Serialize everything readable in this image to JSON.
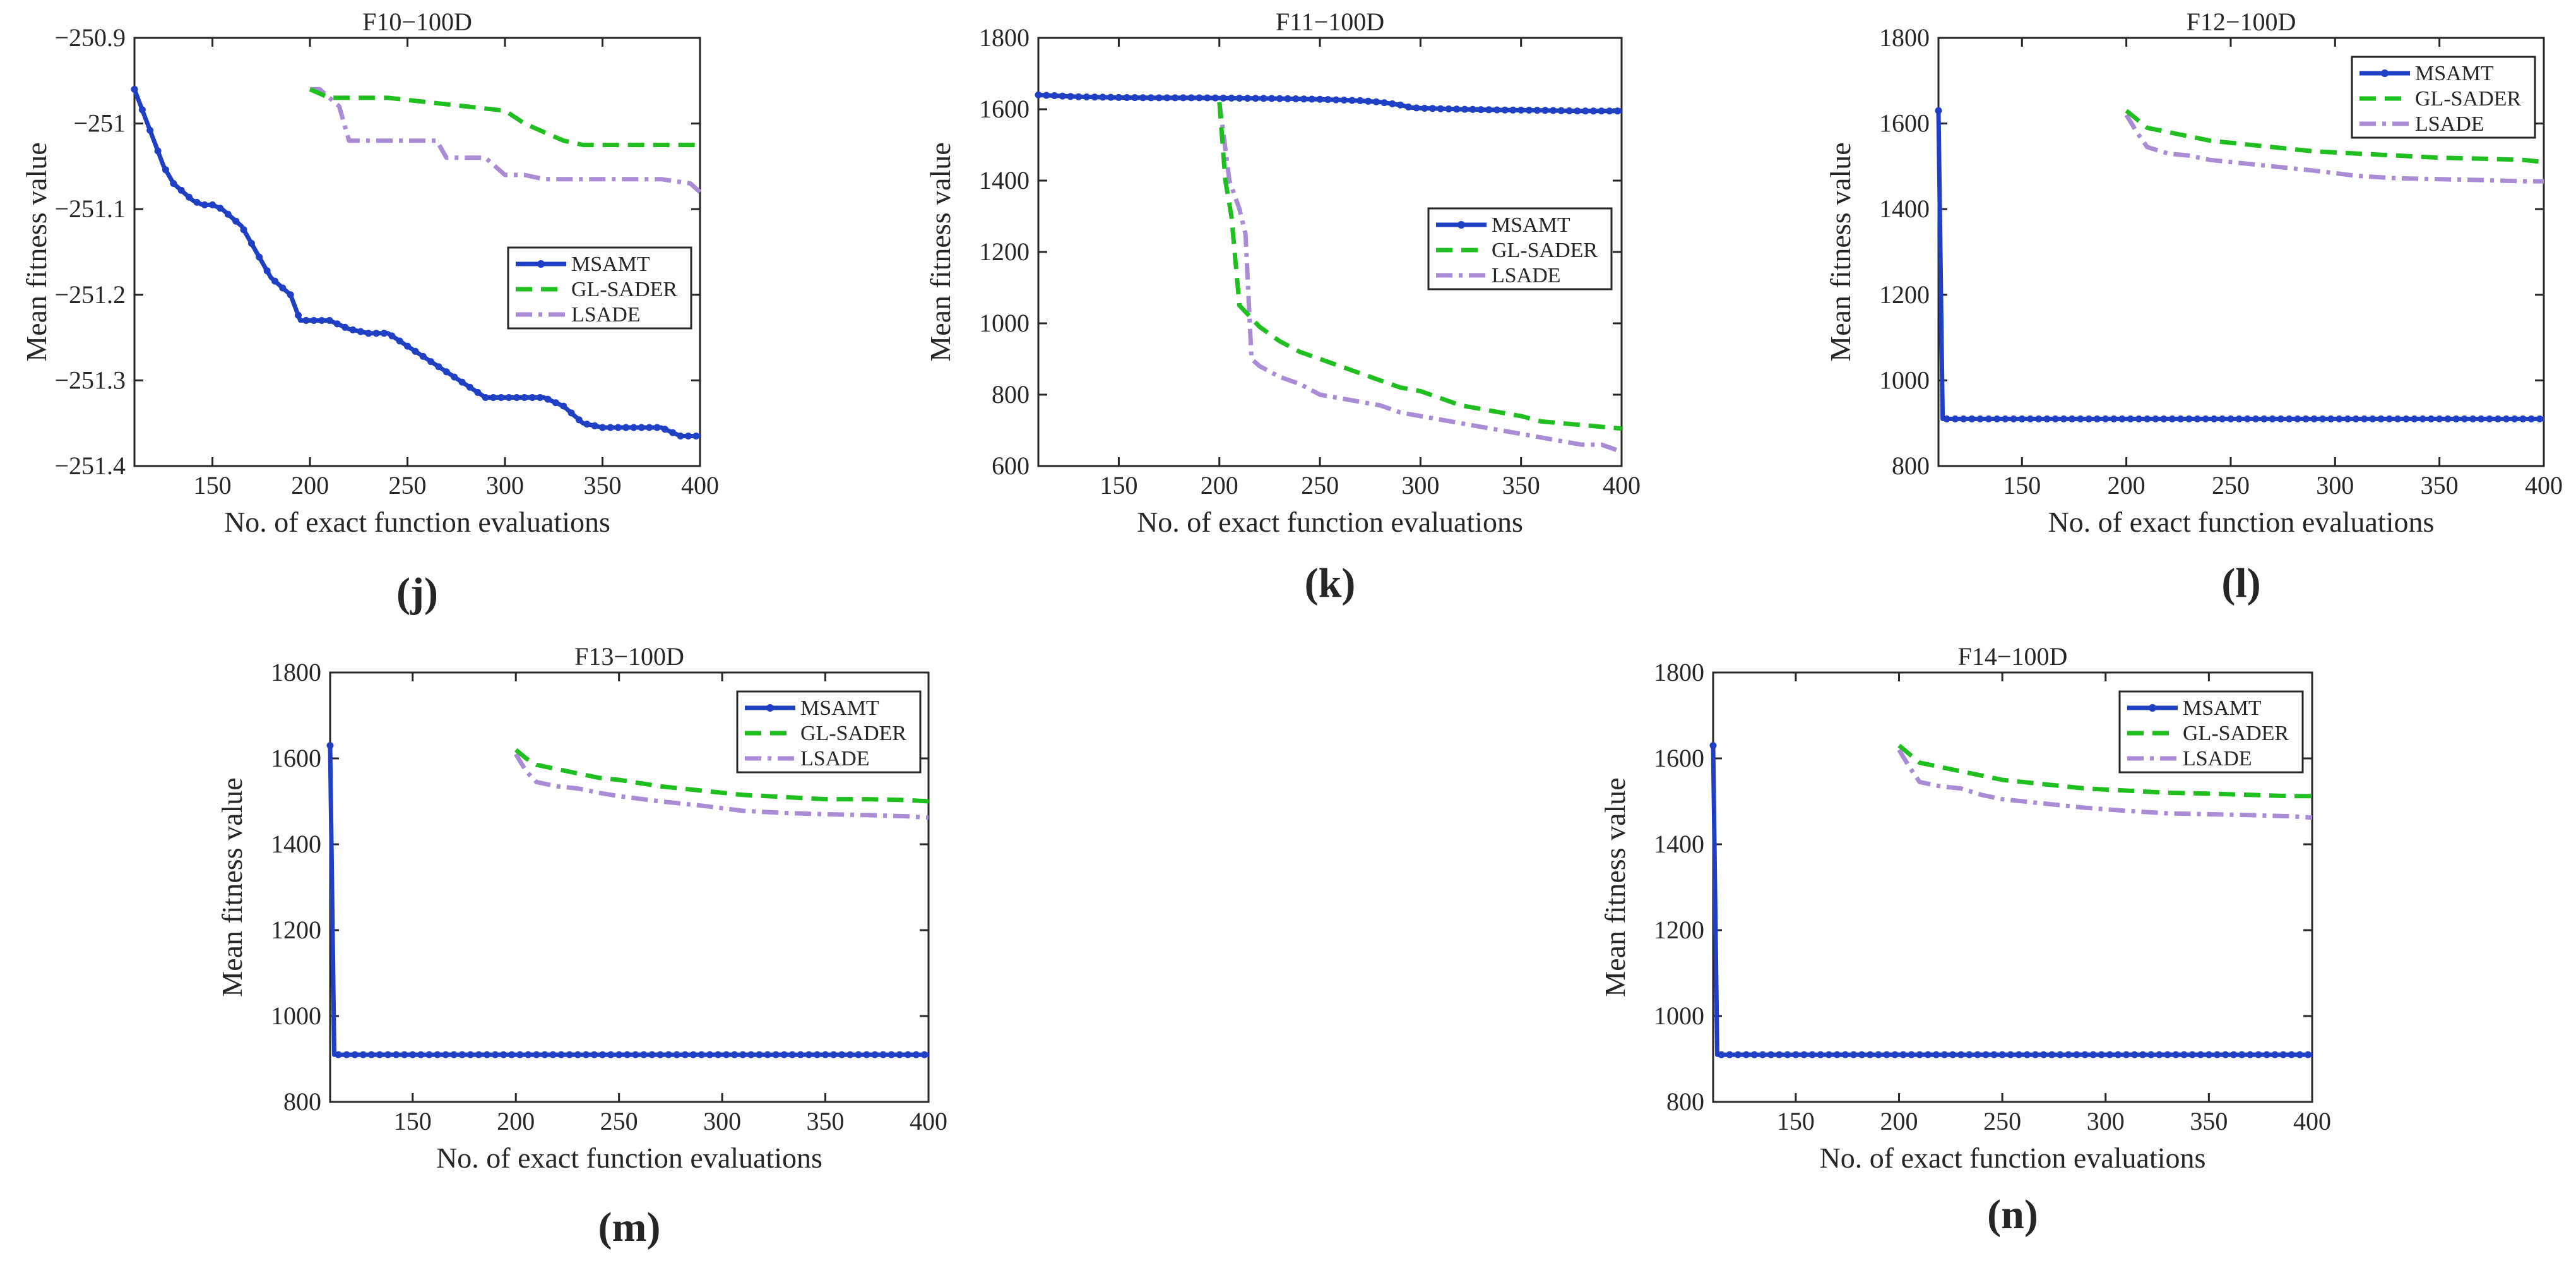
{
  "chart_data": [
    {
      "type": "line",
      "panel": "(j)",
      "title": "F10−100D",
      "xlabel": "No. of exact function evaluations",
      "ylabel": "Mean fitness value",
      "xlim": [
        110,
        400
      ],
      "ylim": [
        -251.4,
        -250.9
      ],
      "xticks": [
        150,
        200,
        250,
        300,
        350,
        400
      ],
      "xtick_labels": [
        "150",
        "200",
        "250",
        "300",
        "350",
        "400"
      ],
      "yticks": [
        -251.4,
        -251.3,
        -251.2,
        -251.1,
        -251.0,
        -250.9
      ],
      "ytick_labels": [
        "−251.4",
        "−251.3",
        "−251.2",
        "−251.1",
        "−251",
        "−250.9"
      ],
      "legend_position": "right",
      "series": [
        {
          "name": "MSAMT",
          "x": [
            110,
            115,
            120,
            125,
            130,
            135,
            140,
            145,
            150,
            155,
            160,
            165,
            170,
            175,
            180,
            185,
            190,
            195,
            200,
            210,
            220,
            230,
            240,
            250,
            260,
            270,
            280,
            290,
            300,
            310,
            320,
            330,
            340,
            350,
            360,
            370,
            380,
            390,
            400
          ],
          "y": [
            -250.96,
            -250.99,
            -251.02,
            -251.05,
            -251.07,
            -251.08,
            -251.09,
            -251.095,
            -251.095,
            -251.1,
            -251.11,
            -251.12,
            -251.14,
            -251.16,
            -251.18,
            -251.19,
            -251.2,
            -251.23,
            -251.23,
            -251.23,
            -251.24,
            -251.245,
            -251.245,
            -251.26,
            -251.275,
            -251.29,
            -251.305,
            -251.32,
            -251.32,
            -251.32,
            -251.32,
            -251.33,
            -251.35,
            -251.355,
            -251.355,
            -251.355,
            -251.355,
            -251.365,
            -251.365
          ]
        },
        {
          "name": "GL-SADER",
          "x": [
            200,
            210,
            220,
            240,
            260,
            280,
            300,
            310,
            320,
            330,
            340,
            360,
            380,
            400
          ],
          "y": [
            -250.96,
            -250.97,
            -250.97,
            -250.97,
            -250.975,
            -250.98,
            -250.985,
            -251.0,
            -251.01,
            -251.02,
            -251.025,
            -251.025,
            -251.025,
            -251.025
          ]
        },
        {
          "name": "LSADE",
          "x": [
            200,
            205,
            210,
            215,
            220,
            230,
            250,
            265,
            270,
            290,
            300,
            310,
            320,
            330,
            340,
            360,
            380,
            395,
            400
          ],
          "y": [
            -250.96,
            -250.96,
            -250.97,
            -250.98,
            -251.02,
            -251.02,
            -251.02,
            -251.02,
            -251.04,
            -251.04,
            -251.06,
            -251.06,
            -251.065,
            -251.065,
            -251.065,
            -251.065,
            -251.065,
            -251.07,
            -251.08
          ]
        }
      ]
    },
    {
      "type": "line",
      "panel": "(k)",
      "title": "F11−100D",
      "xlabel": "No. of exact function evaluations",
      "ylabel": "Mean fitness value",
      "xlim": [
        110,
        400
      ],
      "ylim": [
        600,
        1800
      ],
      "xticks": [
        150,
        200,
        250,
        300,
        350,
        400
      ],
      "xtick_labels": [
        "150",
        "200",
        "250",
        "300",
        "350",
        "400"
      ],
      "yticks": [
        600,
        800,
        1000,
        1200,
        1400,
        1600,
        1800
      ],
      "ytick_labels": [
        "600",
        "800",
        "1000",
        "1200",
        "1400",
        "1600",
        "1800"
      ],
      "legend_position": "right",
      "series": [
        {
          "name": "MSAMT",
          "x": [
            110,
            130,
            150,
            170,
            190,
            210,
            230,
            250,
            260,
            270,
            280,
            290,
            295,
            300,
            320,
            340,
            360,
            380,
            400
          ],
          "y": [
            1640,
            1635,
            1633,
            1632,
            1632,
            1631,
            1630,
            1628,
            1626,
            1624,
            1620,
            1612,
            1605,
            1603,
            1600,
            1598,
            1597,
            1595,
            1595
          ]
        },
        {
          "name": "GL-SADER",
          "x": [
            200,
            203,
            206,
            210,
            215,
            220,
            230,
            240,
            250,
            260,
            270,
            280,
            290,
            300,
            310,
            320,
            330,
            340,
            350,
            360,
            370,
            380,
            390,
            400
          ],
          "y": [
            1620,
            1400,
            1300,
            1050,
            1020,
            990,
            950,
            920,
            900,
            880,
            860,
            840,
            820,
            810,
            790,
            770,
            760,
            750,
            740,
            725,
            720,
            715,
            710,
            705
          ]
        },
        {
          "name": "LSADE",
          "x": [
            200,
            205,
            210,
            213,
            216,
            220,
            230,
            240,
            250,
            260,
            270,
            280,
            290,
            300,
            310,
            320,
            330,
            340,
            350,
            360,
            370,
            380,
            390,
            400
          ],
          "y": [
            1620,
            1400,
            1320,
            1250,
            900,
            880,
            850,
            830,
            800,
            790,
            780,
            770,
            750,
            740,
            730,
            720,
            710,
            700,
            690,
            680,
            670,
            660,
            660,
            640
          ]
        }
      ]
    },
    {
      "type": "line",
      "panel": "(l)",
      "title": "F12−100D",
      "xlabel": "No. of exact function evaluations",
      "ylabel": "Mean fitness value",
      "xlim": [
        110,
        400
      ],
      "ylim": [
        800,
        1800
      ],
      "xticks": [
        150,
        200,
        250,
        300,
        350,
        400
      ],
      "xtick_labels": [
        "150",
        "200",
        "250",
        "300",
        "350",
        "400"
      ],
      "yticks": [
        800,
        1000,
        1200,
        1400,
        1600,
        1800
      ],
      "ytick_labels": [
        "800",
        "1000",
        "1200",
        "1400",
        "1600",
        "1800"
      ],
      "legend_position": "top-right",
      "series": [
        {
          "name": "MSAMT",
          "x": [
            110,
            112,
            150,
            200,
            250,
            300,
            350,
            400
          ],
          "y": [
            1630,
            910,
            910,
            910,
            910,
            910,
            910,
            910
          ]
        },
        {
          "name": "GL-SADER",
          "x": [
            200,
            205,
            210,
            220,
            230,
            240,
            250,
            270,
            290,
            310,
            330,
            350,
            370,
            390,
            400
          ],
          "y": [
            1630,
            1610,
            1590,
            1580,
            1570,
            1560,
            1555,
            1545,
            1535,
            1530,
            1525,
            1520,
            1518,
            1515,
            1510
          ]
        },
        {
          "name": "LSADE",
          "x": [
            200,
            205,
            210,
            220,
            230,
            240,
            250,
            270,
            290,
            310,
            330,
            350,
            370,
            390,
            400
          ],
          "y": [
            1620,
            1580,
            1545,
            1530,
            1525,
            1515,
            1510,
            1500,
            1490,
            1478,
            1472,
            1470,
            1468,
            1465,
            1465
          ]
        }
      ]
    },
    {
      "type": "line",
      "panel": "(m)",
      "title": "F13−100D",
      "xlabel": "No. of exact function evaluations",
      "ylabel": "Mean fitness value",
      "xlim": [
        110,
        400
      ],
      "ylim": [
        800,
        1800
      ],
      "xticks": [
        150,
        200,
        250,
        300,
        350,
        400
      ],
      "xtick_labels": [
        "150",
        "200",
        "250",
        "300",
        "350",
        "400"
      ],
      "yticks": [
        800,
        1000,
        1200,
        1400,
        1600,
        1800
      ],
      "ytick_labels": [
        "800",
        "1000",
        "1200",
        "1400",
        "1600",
        "1800"
      ],
      "legend_position": "top-right",
      "series": [
        {
          "name": "MSAMT",
          "x": [
            110,
            112,
            150,
            200,
            250,
            300,
            350,
            400
          ],
          "y": [
            1630,
            910,
            910,
            910,
            910,
            910,
            910,
            910
          ]
        },
        {
          "name": "GL-SADER",
          "x": [
            200,
            205,
            210,
            220,
            230,
            240,
            250,
            270,
            290,
            310,
            330,
            350,
            370,
            390,
            400
          ],
          "y": [
            1620,
            1600,
            1585,
            1575,
            1565,
            1555,
            1550,
            1535,
            1525,
            1515,
            1510,
            1505,
            1505,
            1503,
            1500
          ]
        },
        {
          "name": "LSADE",
          "x": [
            200,
            205,
            210,
            220,
            230,
            240,
            250,
            270,
            290,
            310,
            330,
            350,
            370,
            390,
            400
          ],
          "y": [
            1610,
            1570,
            1545,
            1535,
            1530,
            1520,
            1512,
            1500,
            1490,
            1478,
            1473,
            1470,
            1468,
            1465,
            1462
          ]
        }
      ]
    },
    {
      "type": "line",
      "panel": "(n)",
      "title": "F14−100D",
      "xlabel": "No. of exact function evaluations",
      "ylabel": "Mean fitness value",
      "xlim": [
        110,
        400
      ],
      "ylim": [
        800,
        1800
      ],
      "xticks": [
        150,
        200,
        250,
        300,
        350,
        400
      ],
      "xtick_labels": [
        "150",
        "200",
        "250",
        "300",
        "350",
        "400"
      ],
      "yticks": [
        800,
        1000,
        1200,
        1400,
        1600,
        1800
      ],
      "ytick_labels": [
        "800",
        "1000",
        "1200",
        "1400",
        "1600",
        "1800"
      ],
      "legend_position": "top-right",
      "series": [
        {
          "name": "MSAMT",
          "x": [
            110,
            112,
            150,
            200,
            250,
            300,
            350,
            400
          ],
          "y": [
            1630,
            910,
            910,
            910,
            910,
            910,
            910,
            910
          ]
        },
        {
          "name": "GL-SADER",
          "x": [
            200,
            205,
            210,
            220,
            230,
            240,
            250,
            270,
            290,
            310,
            330,
            350,
            370,
            390,
            400
          ],
          "y": [
            1630,
            1610,
            1590,
            1580,
            1570,
            1560,
            1550,
            1540,
            1530,
            1525,
            1520,
            1518,
            1515,
            1512,
            1512
          ]
        },
        {
          "name": "LSADE",
          "x": [
            200,
            205,
            210,
            220,
            230,
            240,
            250,
            270,
            290,
            310,
            330,
            350,
            370,
            390,
            400
          ],
          "y": [
            1620,
            1580,
            1545,
            1535,
            1530,
            1515,
            1505,
            1495,
            1485,
            1478,
            1472,
            1470,
            1468,
            1465,
            1462
          ]
        }
      ]
    }
  ],
  "styles": {
    "MSAMT": {
      "color": "#1f3fc4",
      "dash": "solid",
      "markers": true
    },
    "GL-SADER": {
      "color": "#1fbf1f",
      "dash": "dashed",
      "markers": false
    },
    "LSADE": {
      "color": "#a98bd6",
      "dash": "dashdot",
      "markers": false
    }
  }
}
